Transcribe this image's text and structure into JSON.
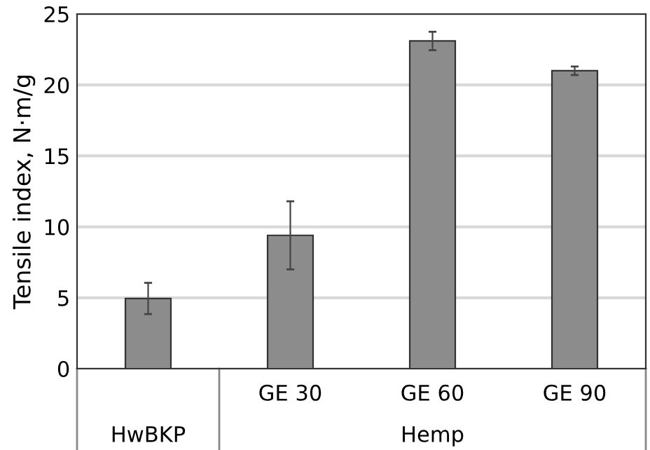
{
  "chart_data": {
    "type": "bar",
    "ylabel": "Tensile index, N·m/g",
    "categories": [
      null,
      "GE 30",
      "GE 60",
      "GE 90"
    ],
    "values": [
      4.95,
      9.4,
      23.1,
      21.0
    ],
    "errors": [
      1.1,
      2.4,
      0.65,
      0.3
    ],
    "color": "#8c8c8c",
    "ylim": [
      0,
      25
    ],
    "yticks": [
      0,
      5,
      10,
      15,
      20,
      25
    ],
    "grid": "y",
    "annotations": [
      "HwBKP",
      "Hemp"
    ]
  }
}
